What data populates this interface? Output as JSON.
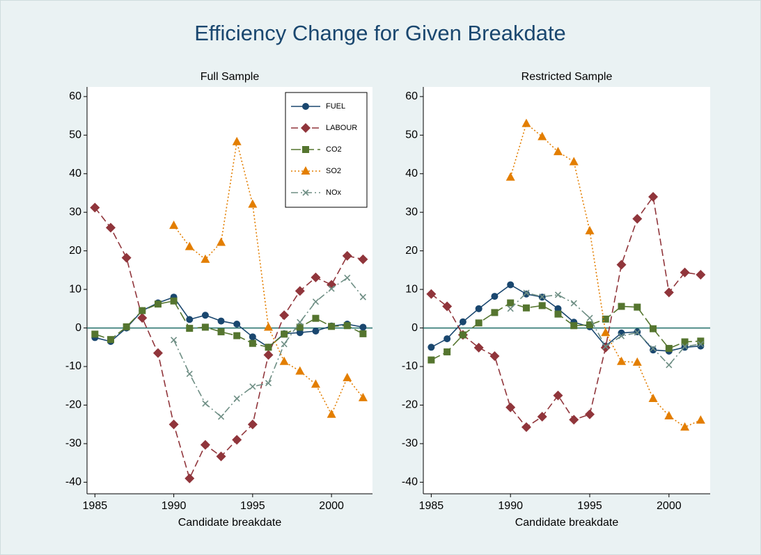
{
  "title": "Efficiency Change for Given Breakdate",
  "chart_data": [
    {
      "type": "line",
      "title": "Full Sample",
      "xlabel": "Candidate breakdate",
      "x": [
        1985,
        1986,
        1987,
        1988,
        1989,
        1990,
        1991,
        1992,
        1993,
        1994,
        1995,
        1996,
        1997,
        1998,
        1999,
        2000,
        2001,
        2002
      ],
      "xlim": [
        1984.5,
        2002.6
      ],
      "xticks": [
        1985,
        1990,
        1995,
        2000
      ],
      "ylim": [
        -43,
        62.5
      ],
      "yticks": [
        -40,
        -30,
        -20,
        -10,
        0,
        10,
        20,
        30,
        40,
        50,
        60
      ],
      "reference_line": 0,
      "legend": "top-right",
      "series": [
        {
          "name": "FUEL",
          "color": "#1a476f",
          "marker": "circle",
          "dash": "solid",
          "values": [
            -2.5,
            -3.5,
            0,
            4.5,
            6.5,
            8,
            2.2,
            3.3,
            1.8,
            1,
            -2.3,
            -5,
            -1.5,
            -1.2,
            -0.8,
            0.5,
            1,
            0.2
          ]
        },
        {
          "name": "LABOUR",
          "color": "#90353b",
          "marker": "diamond",
          "dash": "dash",
          "values": [
            31.2,
            26,
            18.2,
            2.6,
            -6.5,
            -25,
            -39,
            -30.3,
            -33.3,
            -29,
            -25,
            -7,
            3.3,
            9.6,
            13.1,
            11.2,
            18.7,
            17.8
          ]
        },
        {
          "name": "CO2",
          "color": "#55752f",
          "marker": "square",
          "dash": "longdash",
          "values": [
            -1.6,
            -3,
            0.3,
            4.5,
            6.2,
            7,
            -0.1,
            0.2,
            -1,
            -2,
            -4,
            -5,
            -1.6,
            0.2,
            2.5,
            0.4,
            0.6,
            -1.5
          ]
        },
        {
          "name": "SO2",
          "color": "#e37e00",
          "marker": "triangle",
          "dash": "dot",
          "values": [
            null,
            null,
            null,
            null,
            null,
            26.6,
            21.1,
            17.8,
            22.2,
            48.3,
            32.1,
            0.2,
            -8.7,
            -11.2,
            -14.6,
            -22.4,
            -12.9,
            -18.1
          ]
        },
        {
          "name": "NOx",
          "color": "#6e8e84",
          "marker": "x",
          "dash": "dashdot",
          "values": [
            null,
            null,
            null,
            null,
            null,
            -3.1,
            -11.9,
            -19.6,
            -23,
            -18.3,
            -15.2,
            -14.3,
            -4.2,
            1.5,
            6.8,
            10.2,
            13,
            8
          ]
        }
      ]
    },
    {
      "type": "line",
      "title": "Restricted Sample",
      "xlabel": "Candidate breakdate",
      "x": [
        1985,
        1986,
        1987,
        1988,
        1989,
        1990,
        1991,
        1992,
        1993,
        1994,
        1995,
        1996,
        1997,
        1998,
        1999,
        2000,
        2001,
        2002
      ],
      "xlim": [
        1984.5,
        2002.6
      ],
      "xticks": [
        1985,
        1990,
        1995,
        2000
      ],
      "ylim": [
        -43,
        62.5
      ],
      "yticks": [
        -40,
        -30,
        -20,
        -10,
        0,
        10,
        20,
        30,
        40,
        50,
        60
      ],
      "reference_line": 0,
      "series": [
        {
          "name": "FUEL",
          "color": "#1a476f",
          "marker": "circle",
          "dash": "solid",
          "values": [
            -5,
            -2.8,
            1.6,
            5,
            8.2,
            11.2,
            8.8,
            8,
            5,
            1.5,
            0.3,
            -4.7,
            -1.3,
            -1,
            -5.7,
            -6,
            -5,
            -4.7
          ]
        },
        {
          "name": "LABOUR",
          "color": "#90353b",
          "marker": "diamond",
          "dash": "dash",
          "values": [
            8.8,
            5.6,
            -1.8,
            -5.1,
            -7.3,
            -20.6,
            -25.7,
            -23,
            -17.5,
            -23.8,
            -22.4,
            -5.1,
            16.4,
            28.3,
            34,
            9.2,
            14.4,
            13.8
          ]
        },
        {
          "name": "CO2",
          "color": "#55752f",
          "marker": "square",
          "dash": "longdash",
          "values": [
            -8.3,
            -6.2,
            -1.8,
            1.3,
            4,
            6.5,
            5.2,
            5.8,
            3.6,
            0.6,
            0.8,
            2.3,
            5.6,
            5.4,
            -0.2,
            -5.3,
            -3.6,
            -3.4
          ]
        },
        {
          "name": "SO2",
          "color": "#e37e00",
          "marker": "triangle",
          "dash": "dot",
          "values": [
            null,
            null,
            null,
            null,
            null,
            39.1,
            53,
            49.6,
            45.7,
            43.1,
            25.2,
            -1.2,
            -8.7,
            -8.9,
            -18.3,
            -22.8,
            -25.7,
            -23.9
          ]
        },
        {
          "name": "NOx",
          "color": "#6e8e84",
          "marker": "x",
          "dash": "dashdot",
          "values": [
            null,
            null,
            null,
            null,
            null,
            5,
            9.1,
            8.1,
            8.6,
            6.4,
            2.6,
            -4.8,
            -2.1,
            -1.2,
            -5.3,
            -9.6,
            -4.8,
            -4.2
          ]
        }
      ]
    }
  ]
}
